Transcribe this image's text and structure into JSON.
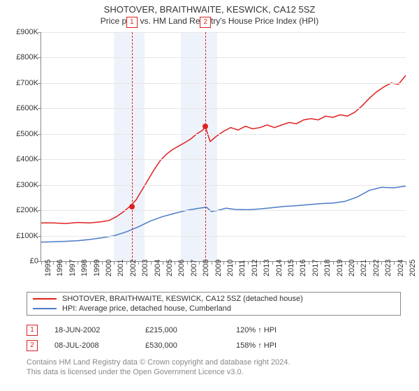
{
  "title": "SHOTOVER, BRAITHWAITE, KESWICK, CA12 5SZ",
  "subtitle": "Price paid vs. HM Land Registry's House Price Index (HPI)",
  "chart": {
    "type": "line",
    "ylim": [
      0,
      900000
    ],
    "ytick_step": 100000,
    "ylabels": [
      "£0",
      "£100K",
      "£200K",
      "£300K",
      "£400K",
      "£500K",
      "£600K",
      "£700K",
      "£800K",
      "£900K"
    ],
    "x_start_year": 1995,
    "x_end_year": 2025,
    "line1_color": "#e02020",
    "line2_color": "#4a7bc8",
    "grid_color": "#e6e6e6",
    "axis_color": "#888888",
    "highlight_color": "#eef3fb",
    "highlight_ranges": [
      [
        2001.0,
        2003.5
      ],
      [
        2006.5,
        2009.5
      ]
    ],
    "series_property": [
      [
        1995.0,
        150
      ],
      [
        1996.0,
        150
      ],
      [
        1997.0,
        148
      ],
      [
        1998.0,
        152
      ],
      [
        1999.0,
        150
      ],
      [
        2000.0,
        155
      ],
      [
        2000.6,
        160
      ],
      [
        2001.2,
        175
      ],
      [
        2001.8,
        195
      ],
      [
        2002.3,
        215
      ],
      [
        2002.8,
        240
      ],
      [
        2003.3,
        280
      ],
      [
        2003.8,
        320
      ],
      [
        2004.3,
        360
      ],
      [
        2004.8,
        395
      ],
      [
        2005.3,
        420
      ],
      [
        2005.8,
        438
      ],
      [
        2006.3,
        452
      ],
      [
        2006.8,
        465
      ],
      [
        2007.3,
        480
      ],
      [
        2007.8,
        500
      ],
      [
        2008.3,
        515
      ],
      [
        2008.5,
        530
      ],
      [
        2008.9,
        470
      ],
      [
        2009.4,
        490
      ],
      [
        2010.0,
        510
      ],
      [
        2010.6,
        525
      ],
      [
        2011.2,
        515
      ],
      [
        2011.8,
        530
      ],
      [
        2012.4,
        520
      ],
      [
        2013.0,
        525
      ],
      [
        2013.6,
        535
      ],
      [
        2014.2,
        525
      ],
      [
        2014.8,
        535
      ],
      [
        2015.4,
        545
      ],
      [
        2016.0,
        540
      ],
      [
        2016.6,
        555
      ],
      [
        2017.2,
        560
      ],
      [
        2017.8,
        555
      ],
      [
        2018.4,
        570
      ],
      [
        2019.0,
        565
      ],
      [
        2019.6,
        575
      ],
      [
        2020.2,
        570
      ],
      [
        2020.8,
        585
      ],
      [
        2021.4,
        610
      ],
      [
        2022.0,
        640
      ],
      [
        2022.6,
        665
      ],
      [
        2023.2,
        685
      ],
      [
        2023.8,
        700
      ],
      [
        2024.4,
        695
      ],
      [
        2025.0,
        730
      ]
    ],
    "series_hpi": [
      [
        1995.0,
        75
      ],
      [
        1996.0,
        76
      ],
      [
        1997.0,
        78
      ],
      [
        1998.0,
        80
      ],
      [
        1999.0,
        85
      ],
      [
        2000.0,
        92
      ],
      [
        2001.0,
        100
      ],
      [
        2002.0,
        115
      ],
      [
        2003.0,
        135
      ],
      [
        2004.0,
        158
      ],
      [
        2005.0,
        175
      ],
      [
        2006.0,
        188
      ],
      [
        2007.0,
        200
      ],
      [
        2008.0,
        208
      ],
      [
        2008.6,
        212
      ],
      [
        2009.0,
        195
      ],
      [
        2009.6,
        200
      ],
      [
        2010.2,
        208
      ],
      [
        2011.0,
        203
      ],
      [
        2012.0,
        202
      ],
      [
        2013.0,
        205
      ],
      [
        2014.0,
        210
      ],
      [
        2015.0,
        215
      ],
      [
        2016.0,
        218
      ],
      [
        2017.0,
        222
      ],
      [
        2018.0,
        226
      ],
      [
        2019.0,
        228
      ],
      [
        2020.0,
        235
      ],
      [
        2021.0,
        252
      ],
      [
        2022.0,
        278
      ],
      [
        2023.0,
        290
      ],
      [
        2024.0,
        288
      ],
      [
        2025.0,
        295
      ]
    ],
    "sale_points": [
      {
        "num": "1",
        "year": 2002.46,
        "value": 215,
        "color": "#e02020"
      },
      {
        "num": "2",
        "year": 2008.52,
        "value": 530,
        "color": "#e02020"
      }
    ]
  },
  "legend": {
    "s1": "SHOTOVER, BRAITHWAITE, KESWICK, CA12 5SZ (detached house)",
    "s2": "HPI: Average price, detached house, Cumberland"
  },
  "sales": [
    {
      "num": "1",
      "date": "18-JUN-2002",
      "price": "£215,000",
      "hpi": "120% ↑ HPI"
    },
    {
      "num": "2",
      "date": "08-JUL-2008",
      "price": "£530,000",
      "hpi": "158% ↑ HPI"
    }
  ],
  "footer1": "Contains HM Land Registry data © Crown copyright and database right 2024.",
  "footer2": "This data is licensed under the Open Government Licence v3.0."
}
